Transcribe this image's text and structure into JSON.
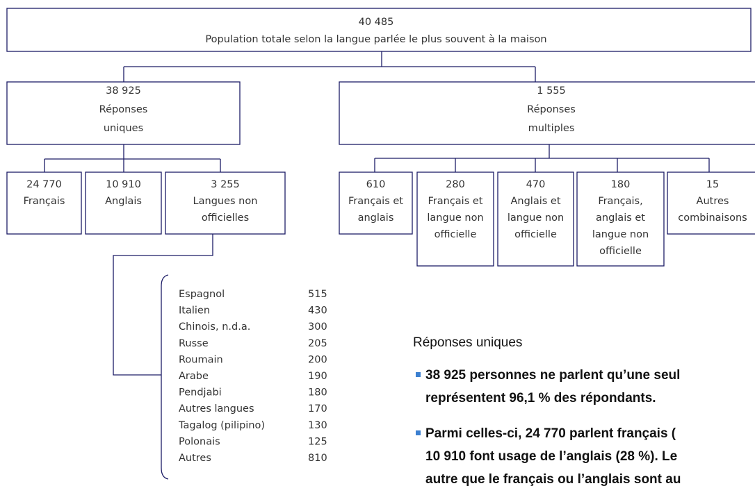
{
  "root": {
    "value": "40 485",
    "label": "Population totale selon la langue parlée le plus souvent à la maison"
  },
  "groups": [
    {
      "value": "38 925",
      "label": [
        "Réponses",
        "uniques"
      ],
      "children": [
        {
          "value": "24 770",
          "label": [
            "Français"
          ]
        },
        {
          "value": "10 910",
          "label": [
            "Anglais"
          ]
        },
        {
          "value": "3 255",
          "label": [
            "Langues non",
            "officielles"
          ]
        }
      ]
    },
    {
      "value": "1 555",
      "label": [
        "Réponses",
        "multiples"
      ],
      "children": [
        {
          "value": "610",
          "label": [
            "Français et",
            "anglais"
          ]
        },
        {
          "value": "280",
          "label": [
            "Français et",
            "langue non",
            "officielle"
          ]
        },
        {
          "value": "470",
          "label": [
            "Anglais et",
            "langue non",
            "officielle"
          ]
        },
        {
          "value": "180",
          "label": [
            "Français,",
            "anglais et",
            "langue non",
            "officielle"
          ]
        },
        {
          "value": "15",
          "label": [
            "Autres",
            "combinaisons"
          ]
        }
      ]
    }
  ],
  "list": [
    {
      "name": "Espagnol",
      "value": "515"
    },
    {
      "name": "Italien",
      "value": "430"
    },
    {
      "name": "Chinois, n.d.a.",
      "value": "300"
    },
    {
      "name": "Russe",
      "value": "205"
    },
    {
      "name": "Roumain",
      "value": "200"
    },
    {
      "name": "Arabe",
      "value": "190"
    },
    {
      "name": "Pendjabi",
      "value": "180"
    },
    {
      "name": "Autres langues",
      "value": "170"
    },
    {
      "name": "Tagalog (pilipino)",
      "value": "130"
    },
    {
      "name": "Polonais",
      "value": "125"
    },
    {
      "name": "Autres",
      "value": "810"
    }
  ],
  "section": {
    "title": "Réponses uniques",
    "bullets": [
      [
        "38 925 personnes ne parlent qu’une seul",
        "représentent 96,1 % des répondants."
      ],
      [
        "Parmi celles-ci, 24 770 parlent français (",
        "10 910 font usage de l’anglais (28 %). Le",
        "autre que le français ou l’anglais sont au"
      ]
    ]
  }
}
